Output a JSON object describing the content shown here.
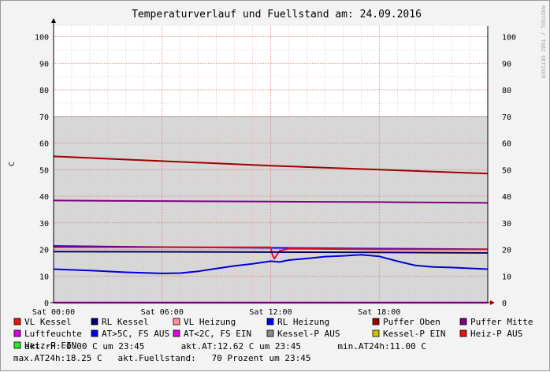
{
  "chart_data": {
    "type": "line",
    "title": "Temperaturverlauf und Fuellstand am: 24.09.2016",
    "ylabel": "C",
    "watermark": "RRDTOOL / TOBI OETIKER",
    "ylim": [
      0,
      104
    ],
    "xlim_hours": [
      0,
      24
    ],
    "yticks": [
      "0",
      "10",
      "20",
      "30",
      "40",
      "50",
      "60",
      "70",
      "80",
      "90",
      "100"
    ],
    "xticks": [
      {
        "h": 0,
        "label": "Sat 00:00"
      },
      {
        "h": 6,
        "label": "Sat 06:00"
      },
      {
        "h": 12,
        "label": "Sat 12:00"
      },
      {
        "h": 18,
        "label": "Sat 18:00"
      }
    ],
    "fill_level": {
      "name": "Fuellstand",
      "value": 70,
      "color": "#d7d7d7"
    },
    "series": [
      {
        "name": "Puffer Oben",
        "color": "#a00000",
        "x": [
          0,
          6,
          12,
          18,
          24
        ],
        "y": [
          55,
          53.2,
          51.5,
          50,
          48.5
        ]
      },
      {
        "name": "Puffer Mitte",
        "color": "#800080",
        "x": [
          0,
          6,
          12,
          18,
          24
        ],
        "y": [
          38.4,
          38.2,
          38.0,
          37.8,
          37.5
        ]
      },
      {
        "name": "RL Heizung",
        "color": "#0000ee",
        "x": [
          0,
          6,
          12,
          18,
          24
        ],
        "y": [
          21.3,
          20.9,
          20.6,
          20.3,
          20.1
        ]
      },
      {
        "name": "VL Kessel",
        "color": "#ee1111",
        "x": [
          0,
          12,
          12.1,
          12.2,
          12.5,
          13,
          18,
          24
        ],
        "y": [
          20.8,
          20.8,
          18.0,
          16.5,
          19.5,
          20.3,
          20.0,
          20.0
        ]
      },
      {
        "name": "RL Kessel",
        "color": "#000060",
        "x": [
          0,
          6,
          12,
          18,
          24
        ],
        "y": [
          19.2,
          19.1,
          19.0,
          18.9,
          18.7
        ]
      },
      {
        "name": "AT>5C, FS AUS",
        "color": "#0000dd",
        "x": [
          0,
          2,
          4,
          6,
          7,
          8,
          9,
          10,
          11,
          12,
          12.5,
          13,
          14,
          15,
          16,
          17,
          18,
          19,
          20,
          21,
          22,
          23,
          24
        ],
        "y": [
          12.6,
          12.1,
          11.4,
          11.0,
          11.1,
          11.8,
          12.8,
          13.8,
          14.6,
          15.6,
          15.3,
          16.0,
          16.6,
          17.3,
          17.6,
          18.0,
          17.4,
          15.6,
          14.0,
          13.4,
          13.2,
          12.9,
          12.6
        ]
      },
      {
        "name": "Luftfeuchte",
        "color": "#e000e0",
        "x": [
          0,
          24
        ],
        "y": [
          0,
          0
        ]
      }
    ],
    "legend": [
      {
        "label": "VL Kessel",
        "color": "#ee1111"
      },
      {
        "label": "RL Kessel",
        "color": "#000070"
      },
      {
        "label": "VL Heizung",
        "color": "#ff8fa0"
      },
      {
        "label": "RL Heizung",
        "color": "#0000ee"
      },
      {
        "label": "Puffer Oben",
        "color": "#a00000"
      },
      {
        "label": "Puffer Mitte",
        "color": "#800080"
      },
      {
        "label": "Luftfeuchte",
        "color": "#e000e0"
      },
      {
        "label": "AT>5C, FS AUS",
        "color": "#0000ee"
      },
      {
        "label": "AT<2C, FS EIN",
        "color": "#e000e0"
      },
      {
        "label": "Kessel-P AUS",
        "color": "#8a8a8a"
      },
      {
        "label": "Kessel-P EIN",
        "color": "#d0c000"
      },
      {
        "label": "Heiz-P AUS",
        "color": "#ee1111"
      },
      {
        "label": "Heiz-P EIN",
        "color": "#22ee22"
      }
    ],
    "stats_line1": "akt.rH: 0.00 C um 23:45       akt.AT:12.62 C um 23:45       min.AT24h:11.00 C",
    "stats_line2": "max.AT24h:18.25 C   akt.Fuellstand:   70 Prozent um 23:45"
  }
}
